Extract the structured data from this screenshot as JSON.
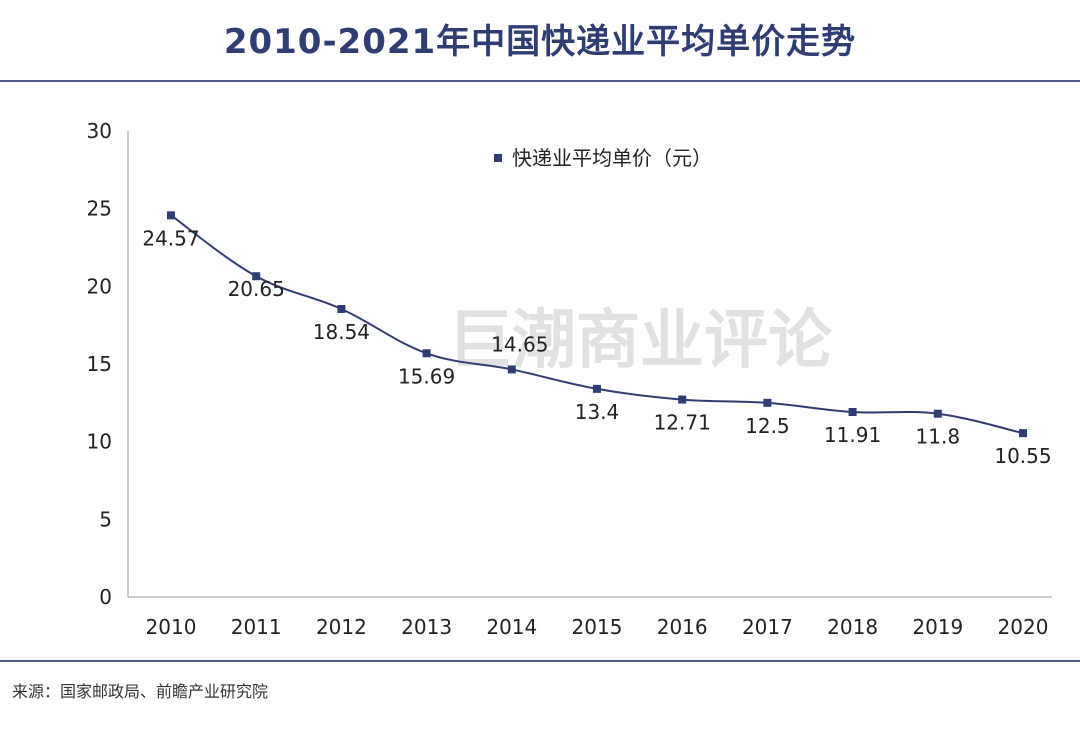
{
  "title": "2010-2021年中国快递业平均单价走势",
  "source": "来源：国家邮政局、前瞻产业研究院",
  "watermark": "巨潮商业评论",
  "colors": {
    "line": "#2f3d73",
    "marker": "#2f3d73",
    "title": "#2f3d73",
    "rule": "#4b5a8a"
  },
  "chart_data": {
    "type": "line",
    "categories": [
      "2010",
      "2011",
      "2012",
      "2013",
      "2014",
      "2015",
      "2016",
      "2017",
      "2018",
      "2019",
      "2020"
    ],
    "series": [
      {
        "name": "快递业平均单价（元）",
        "values": [
          24.57,
          20.65,
          18.54,
          15.69,
          14.65,
          13.4,
          12.71,
          12.5,
          11.91,
          11.8,
          10.55
        ]
      }
    ],
    "data_labels": [
      "24.57",
      "20.65",
      "18.54",
      "15.69",
      "14.65",
      "13.4",
      "12.71",
      "12.5",
      "11.91",
      "11.8",
      "10.55"
    ],
    "ylim": [
      0,
      30
    ],
    "yticks": [
      "0",
      "5",
      "10",
      "15",
      "20",
      "25",
      "30"
    ],
    "grid": false,
    "legend_position": "top-center",
    "xlabel": "",
    "ylabel": ""
  }
}
